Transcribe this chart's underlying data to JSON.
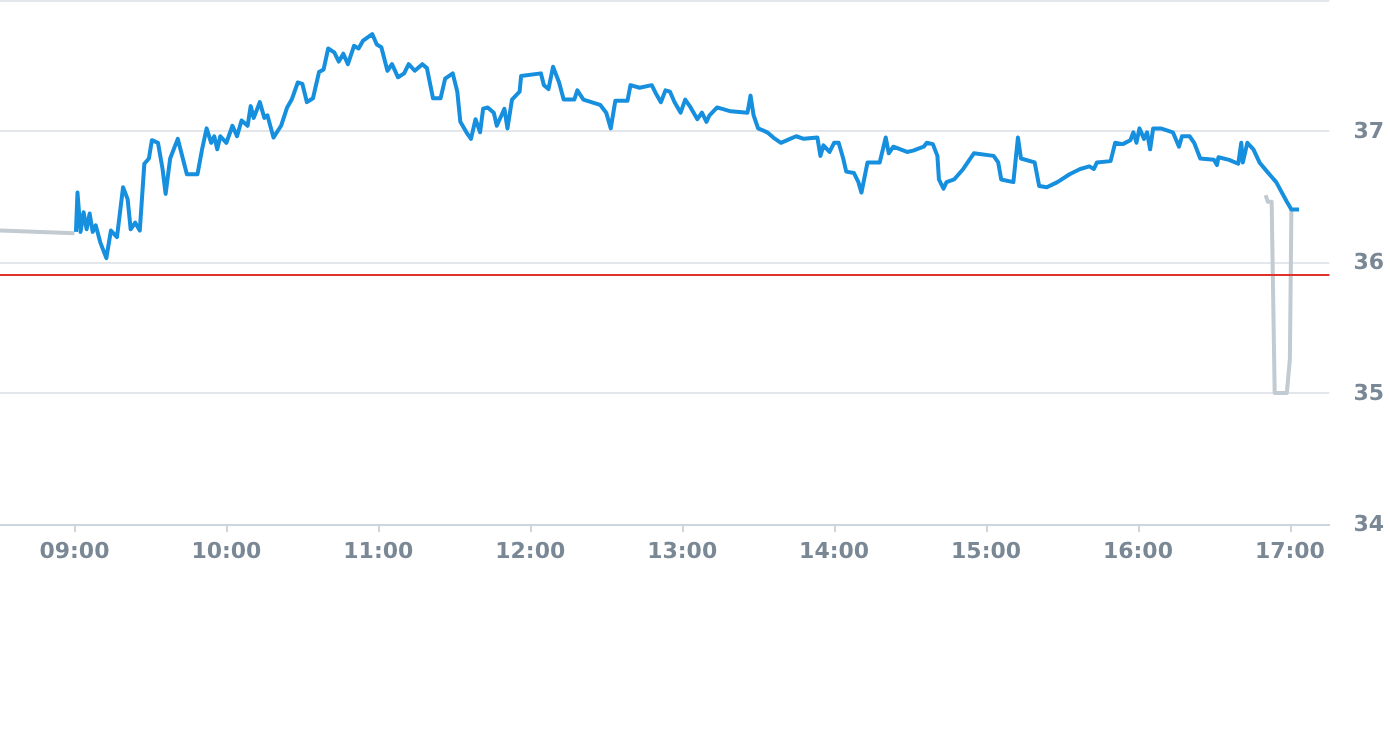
{
  "chart_data": {
    "type": "line",
    "xlim": [
      8.51,
      17.26
    ],
    "ylim": [
      34,
      38
    ],
    "xticks": [
      {
        "value": 9,
        "label": "09:00"
      },
      {
        "value": 10,
        "label": "10:00"
      },
      {
        "value": 11,
        "label": "11:00"
      },
      {
        "value": 12,
        "label": "12:00"
      },
      {
        "value": 13,
        "label": "13:00"
      },
      {
        "value": 14,
        "label": "14:00"
      },
      {
        "value": 15,
        "label": "15:00"
      },
      {
        "value": 16,
        "label": "16:00"
      },
      {
        "value": 17,
        "label": "17:00"
      }
    ],
    "yticks": [
      34,
      35,
      36,
      37
    ],
    "grid": "y",
    "marker": "none",
    "line_style": "solid",
    "ref_lines": [
      {
        "axis": "y",
        "value": 35.9,
        "color": "#e0302a"
      }
    ],
    "series": [
      {
        "color": "#c2cad2",
        "x": [
          8.51,
          9.0
        ],
        "values": [
          36.24,
          36.22
        ]
      },
      {
        "color": "#c2cad2",
        "x": [
          16.84,
          16.855,
          16.88,
          16.9,
          16.98,
          17.0,
          17.01
        ],
        "values": [
          36.51,
          36.46,
          36.46,
          35.0,
          35.0,
          35.26,
          36.4
        ]
      },
      {
        "color": "#168fde",
        "x": [
          9.01,
          9.02,
          9.04,
          9.06,
          9.08,
          9.1,
          9.12,
          9.14,
          9.17,
          9.21,
          9.24,
          9.28,
          9.32,
          9.35,
          9.37,
          9.4,
          9.43,
          9.46,
          9.49,
          9.51,
          9.55,
          9.58,
          9.6,
          9.63,
          9.68,
          9.74,
          9.81,
          9.84,
          9.87,
          9.9,
          9.92,
          9.94,
          9.96,
          10.0,
          10.04,
          10.07,
          10.1,
          10.14,
          10.16,
          10.18,
          10.22,
          10.25,
          10.27,
          10.31,
          10.36,
          10.4,
          10.43,
          10.47,
          10.5,
          10.53,
          10.57,
          10.61,
          10.64,
          10.67,
          10.71,
          10.74,
          10.77,
          10.8,
          10.84,
          10.87,
          10.9,
          10.96,
          10.99,
          11.02,
          11.06,
          11.09,
          11.13,
          11.17,
          11.2,
          11.24,
          11.29,
          11.32,
          11.36,
          11.41,
          11.44,
          11.49,
          11.52,
          11.54,
          11.58,
          11.61,
          11.64,
          11.67,
          11.69,
          11.72,
          11.76,
          11.78,
          11.83,
          11.85,
          11.88,
          11.93,
          11.94,
          12.07,
          12.09,
          12.12,
          12.15,
          12.19,
          12.22,
          12.29,
          12.31,
          12.35,
          12.46,
          12.5,
          12.53,
          12.56,
          12.64,
          12.66,
          12.72,
          12.8,
          12.83,
          12.86,
          12.89,
          12.92,
          12.95,
          12.99,
          13.02,
          13.05,
          13.1,
          13.13,
          13.16,
          13.18,
          13.23,
          13.32,
          13.43,
          13.45,
          13.47,
          13.5,
          13.56,
          13.6,
          13.65,
          13.71,
          13.75,
          13.8,
          13.89,
          13.91,
          13.93,
          13.97,
          14.0,
          14.03,
          14.06,
          14.08,
          14.13,
          14.16,
          14.18,
          14.22,
          14.3,
          14.34,
          14.36,
          14.39,
          14.48,
          14.52,
          14.59,
          14.61,
          14.65,
          14.68,
          14.69,
          14.72,
          14.74,
          14.79,
          14.85,
          14.92,
          15.05,
          15.08,
          15.1,
          15.18,
          15.21,
          15.23,
          15.32,
          15.35,
          15.4,
          15.47,
          15.55,
          15.62,
          15.68,
          15.71,
          15.73,
          15.82,
          15.85,
          15.9,
          15.95,
          15.97,
          15.99,
          16.01,
          16.04,
          16.06,
          16.08,
          16.1,
          16.15,
          16.23,
          16.27,
          16.29,
          16.34,
          16.37,
          16.41,
          16.5,
          16.52,
          16.53,
          16.6,
          16.66,
          16.68,
          16.69,
          16.72,
          16.76,
          16.8,
          16.85,
          16.91,
          16.98,
          17.01,
          17.06
        ],
        "values": [
          36.23,
          36.53,
          36.23,
          36.38,
          36.25,
          36.37,
          36.23,
          36.28,
          36.15,
          36.03,
          36.24,
          36.19,
          36.57,
          36.48,
          36.25,
          36.3,
          36.24,
          36.75,
          36.79,
          36.93,
          36.91,
          36.71,
          36.52,
          36.79,
          36.94,
          36.67,
          36.67,
          36.86,
          37.02,
          36.91,
          36.96,
          36.86,
          36.96,
          36.91,
          37.04,
          36.96,
          37.08,
          37.04,
          37.19,
          37.1,
          37.22,
          37.1,
          37.12,
          36.95,
          37.04,
          37.18,
          37.24,
          37.37,
          37.36,
          37.22,
          37.25,
          37.45,
          37.47,
          37.63,
          37.6,
          37.53,
          37.59,
          37.51,
          37.65,
          37.63,
          37.69,
          37.74,
          37.66,
          37.64,
          37.46,
          37.51,
          37.41,
          37.44,
          37.51,
          37.46,
          37.51,
          37.48,
          37.25,
          37.25,
          37.4,
          37.44,
          37.3,
          37.07,
          36.99,
          36.94,
          37.09,
          36.99,
          37.17,
          37.18,
          37.14,
          37.04,
          37.17,
          37.02,
          37.24,
          37.3,
          37.42,
          37.44,
          37.35,
          37.32,
          37.49,
          37.37,
          37.24,
          37.24,
          37.31,
          37.24,
          37.2,
          37.14,
          37.02,
          37.23,
          37.23,
          37.35,
          37.33,
          37.35,
          37.28,
          37.22,
          37.31,
          37.3,
          37.22,
          37.14,
          37.24,
          37.19,
          37.09,
          37.14,
          37.07,
          37.12,
          37.18,
          37.15,
          37.14,
          37.27,
          37.12,
          37.02,
          36.99,
          36.95,
          36.91,
          36.94,
          36.96,
          36.94,
          36.95,
          36.81,
          36.89,
          36.84,
          36.91,
          36.91,
          36.79,
          36.69,
          36.68,
          36.61,
          36.53,
          36.76,
          36.76,
          36.95,
          36.83,
          36.88,
          36.84,
          36.85,
          36.88,
          36.91,
          36.9,
          36.81,
          36.63,
          36.56,
          36.61,
          36.63,
          36.71,
          36.83,
          36.81,
          36.76,
          36.63,
          36.61,
          36.95,
          36.79,
          36.76,
          36.58,
          36.57,
          36.61,
          36.67,
          36.71,
          36.73,
          36.71,
          36.76,
          36.77,
          36.91,
          36.9,
          36.93,
          36.99,
          36.91,
          37.02,
          36.94,
          36.99,
          36.86,
          37.02,
          37.02,
          36.99,
          36.88,
          36.96,
          36.96,
          36.91,
          36.79,
          36.78,
          36.74,
          36.8,
          36.78,
          36.75,
          36.91,
          36.76,
          36.91,
          36.86,
          36.76,
          36.69,
          36.61,
          36.46,
          36.4,
          36.4
        ]
      }
    ]
  }
}
